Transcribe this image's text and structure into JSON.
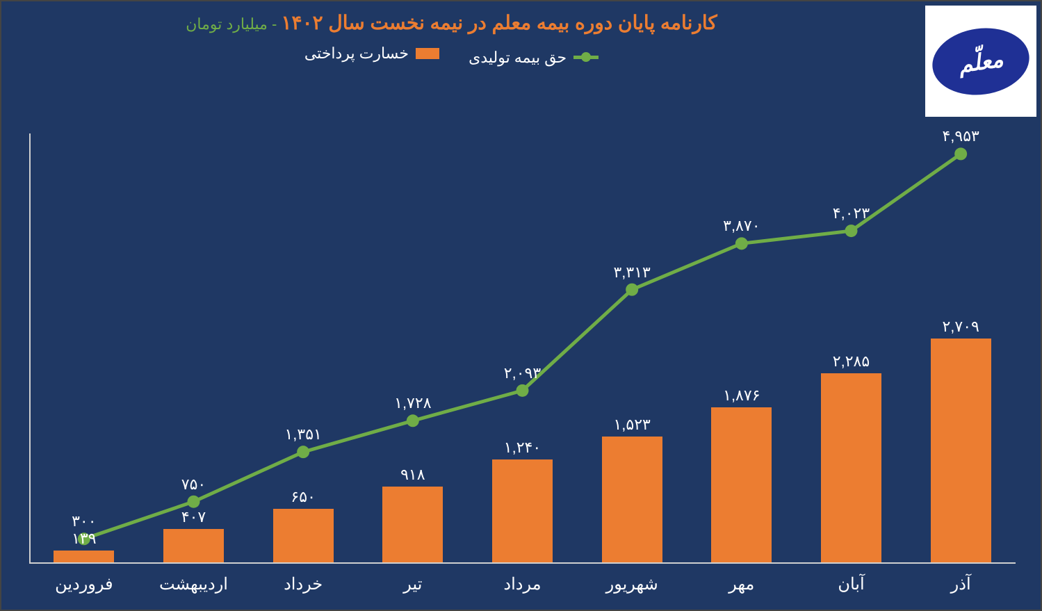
{
  "chart": {
    "type": "bar+line",
    "title_main": "کارنامه پایان دوره بیمه معلم در نیمه نخست سال ۱۴۰۲",
    "title_sub": " - میلیارد تومان",
    "title_main_color": "#ec7d31",
    "title_sub_color": "#70ad47",
    "title_fontsize": 28,
    "background_color": "#1f3864",
    "border_color": "#444444",
    "logo_bg": "#ffffff",
    "logo_ellipse_color": "#1f3095",
    "logo_text": "معلّم",
    "legend": {
      "line_label": "حق بیمه تولیدی",
      "bar_label": "خسارت پرداختی",
      "line_color": "#70ad47",
      "bar_color": "#ec7d31",
      "text_color": "#ffffff",
      "fontsize": 22
    },
    "axis_color": "#d0d0d0",
    "categories": [
      "فروردین",
      "اردیبهشت",
      "خرداد",
      "تیر",
      "مرداد",
      "شهریور",
      "مهر",
      "آبان",
      "آذر"
    ],
    "x_tick_fontsize": 24,
    "x_tick_color": "#ffffff",
    "bars": {
      "values": [
        139,
        407,
        650,
        918,
        1240,
        1523,
        1876,
        2285,
        2709
      ],
      "labels": [
        "۱۳۹",
        "۴۰۷",
        "۶۵۰",
        "۹۱۸",
        "۱,۲۴۰",
        "۱,۵۲۳",
        "۱,۸۷۶",
        "۲,۲۸۵",
        "۲,۷۰۹"
      ],
      "color": "#ec7d31",
      "bar_width_ratio": 0.55,
      "label_color": "#ffffff",
      "label_fontsize": 22
    },
    "line": {
      "values": [
        300,
        750,
        1351,
        1728,
        2093,
        3313,
        3870,
        4023,
        4953
      ],
      "labels": [
        "۳۰۰",
        "۷۵۰",
        "۱,۳۵۱",
        "۱,۷۲۸",
        "۲,۰۹۳",
        "۳,۳۱۳",
        "۳,۸۷۰",
        "۴,۰۲۳",
        "۴,۹۵۳"
      ],
      "color": "#70ad47",
      "width": 5,
      "marker_radius": 9,
      "label_color": "#ffffff",
      "label_fontsize": 22
    },
    "y_max": 5200,
    "y_min": 0
  }
}
